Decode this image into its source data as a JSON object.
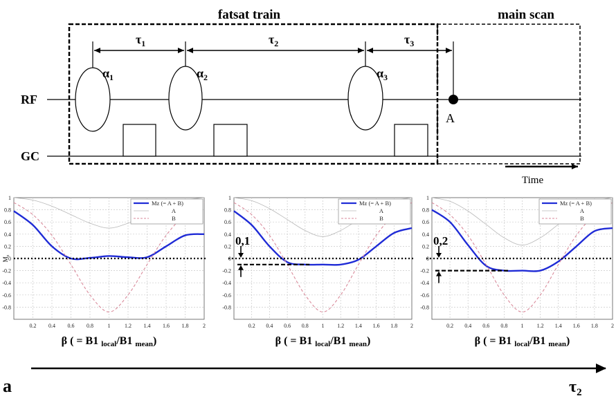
{
  "sequence": {
    "fatsat_label": "fatsat train",
    "main_label": "main scan",
    "rf_label": "RF",
    "gc_label": "GC",
    "time_label": "Time",
    "intervals": [
      {
        "base": "τ",
        "sub": "1"
      },
      {
        "base": "τ",
        "sub": "2"
      },
      {
        "base": "τ",
        "sub": "3"
      }
    ],
    "pulses": [
      {
        "base": "α",
        "sub": "1"
      },
      {
        "base": "α",
        "sub": "2"
      },
      {
        "base": "α",
        "sub": "3"
      }
    ],
    "point_label": "A"
  },
  "panel_letter": "a",
  "tau2_axis": {
    "base": "τ",
    "sub": "2"
  },
  "chart_data": [
    {
      "type": "line",
      "ylabel": "M",
      "ylabel_sub": "z",
      "xlabel": {
        "pre": "β ( = B1 ",
        "sub1": "local",
        "mid": "/B1 ",
        "sub2": "mean",
        "post": ")"
      },
      "xlim": [
        0,
        2
      ],
      "ylim": [
        -1,
        1
      ],
      "xticks": [
        0.2,
        0.4,
        0.6,
        0.8,
        1,
        1.2,
        1.4,
        1.6,
        1.8,
        2
      ],
      "yticks": [
        0.8,
        0.6,
        0.4,
        0.2,
        0,
        -0.2,
        -0.4,
        -0.6,
        -0.8
      ],
      "grid": true,
      "legend": "top-right",
      "offset": null,
      "series": [
        {
          "name": "Mz (= A + B)",
          "color": "#1f2bd6",
          "x": [
            0,
            0.2,
            0.4,
            0.6,
            0.8,
            1,
            1.2,
            1.4,
            1.6,
            1.8,
            2
          ],
          "y": [
            0.78,
            0.55,
            0.2,
            0.0,
            0.01,
            0.04,
            0.02,
            0.02,
            0.2,
            0.38,
            0.4
          ]
        },
        {
          "name": "A",
          "color": "#b8b8b8",
          "x": [
            0,
            0.2,
            0.4,
            0.6,
            0.8,
            1,
            1.2,
            1.4,
            1.6,
            1.8,
            2
          ],
          "y": [
            1.0,
            0.96,
            0.86,
            0.72,
            0.58,
            0.5,
            0.58,
            0.72,
            0.86,
            0.96,
            1.0
          ]
        },
        {
          "name": "B",
          "color": "#d98a9a",
          "x": [
            0,
            0.2,
            0.4,
            0.6,
            0.8,
            1,
            1.2,
            1.4,
            1.6,
            1.8,
            2
          ],
          "y": [
            0.92,
            0.72,
            0.38,
            -0.1,
            -0.6,
            -0.88,
            -0.6,
            -0.1,
            0.38,
            0.72,
            0.92
          ]
        }
      ]
    },
    {
      "type": "line",
      "ylabel": "",
      "ylabel_sub": "",
      "xlabel": {
        "pre": "β ( = B1 ",
        "sub1": "local",
        "mid": "/B1 ",
        "sub2": "mean",
        "post": ")"
      },
      "xlim": [
        0,
        2
      ],
      "ylim": [
        -1,
        1
      ],
      "xticks": [
        0.2,
        0.4,
        0.6,
        0.8,
        1,
        1.2,
        1.4,
        1.6,
        1.8,
        2
      ],
      "yticks": [
        0.8,
        0.6,
        0.4,
        0.2,
        0,
        -0.2,
        -0.4,
        -0.6,
        -0.8
      ],
      "grid": true,
      "legend": "top-right",
      "offset": {
        "label": "0,1",
        "level": -0.1
      },
      "series": [
        {
          "name": "Mz (= A + B)",
          "color": "#1f2bd6",
          "x": [
            0,
            0.2,
            0.4,
            0.6,
            0.8,
            1,
            1.2,
            1.4,
            1.6,
            1.8,
            2
          ],
          "y": [
            0.78,
            0.55,
            0.2,
            -0.06,
            -0.1,
            -0.1,
            -0.1,
            -0.02,
            0.2,
            0.42,
            0.5
          ]
        },
        {
          "name": "A",
          "color": "#b8b8b8",
          "x": [
            0,
            0.2,
            0.4,
            0.6,
            0.8,
            1,
            1.2,
            1.4,
            1.6,
            1.8,
            2
          ],
          "y": [
            1.0,
            0.95,
            0.82,
            0.64,
            0.46,
            0.36,
            0.46,
            0.64,
            0.82,
            0.95,
            1.0
          ]
        },
        {
          "name": "B",
          "color": "#d98a9a",
          "x": [
            0,
            0.2,
            0.4,
            0.6,
            0.8,
            1,
            1.2,
            1.4,
            1.6,
            1.8,
            2
          ],
          "y": [
            0.92,
            0.72,
            0.38,
            -0.1,
            -0.6,
            -0.88,
            -0.6,
            -0.1,
            0.38,
            0.72,
            0.92
          ]
        }
      ]
    },
    {
      "type": "line",
      "ylabel": "",
      "ylabel_sub": "",
      "xlabel": {
        "pre": "β ( = B1 ",
        "sub1": "local",
        "mid": "/B1 ",
        "sub2": "mean",
        "post": ")"
      },
      "xlim": [
        0,
        2
      ],
      "ylim": [
        -1,
        1
      ],
      "xticks": [
        0.2,
        0.4,
        0.6,
        0.8,
        1,
        1.2,
        1.4,
        1.6,
        1.8,
        2
      ],
      "yticks": [
        0.8,
        0.6,
        0.4,
        0.2,
        0,
        -0.2,
        -0.4,
        -0.6,
        -0.8
      ],
      "grid": true,
      "legend": "top-right",
      "offset": {
        "label": "0,2",
        "level": -0.2
      },
      "series": [
        {
          "name": "Mz (= A + B)",
          "color": "#1f2bd6",
          "x": [
            0,
            0.2,
            0.4,
            0.6,
            0.8,
            1,
            1.2,
            1.4,
            1.6,
            1.8,
            2
          ],
          "y": [
            0.8,
            0.6,
            0.22,
            -0.12,
            -0.2,
            -0.2,
            -0.2,
            -0.05,
            0.2,
            0.45,
            0.5
          ]
        },
        {
          "name": "A",
          "color": "#b8b8b8",
          "x": [
            0,
            0.2,
            0.4,
            0.6,
            0.8,
            1,
            1.2,
            1.4,
            1.6,
            1.8,
            2
          ],
          "y": [
            1.0,
            0.94,
            0.78,
            0.56,
            0.34,
            0.22,
            0.34,
            0.56,
            0.78,
            0.94,
            1.0
          ]
        },
        {
          "name": "B",
          "color": "#d98a9a",
          "x": [
            0,
            0.2,
            0.4,
            0.6,
            0.8,
            1,
            1.2,
            1.4,
            1.6,
            1.8,
            2
          ],
          "y": [
            0.92,
            0.72,
            0.38,
            -0.1,
            -0.6,
            -0.88,
            -0.6,
            -0.1,
            0.38,
            0.72,
            0.92
          ]
        }
      ]
    }
  ]
}
